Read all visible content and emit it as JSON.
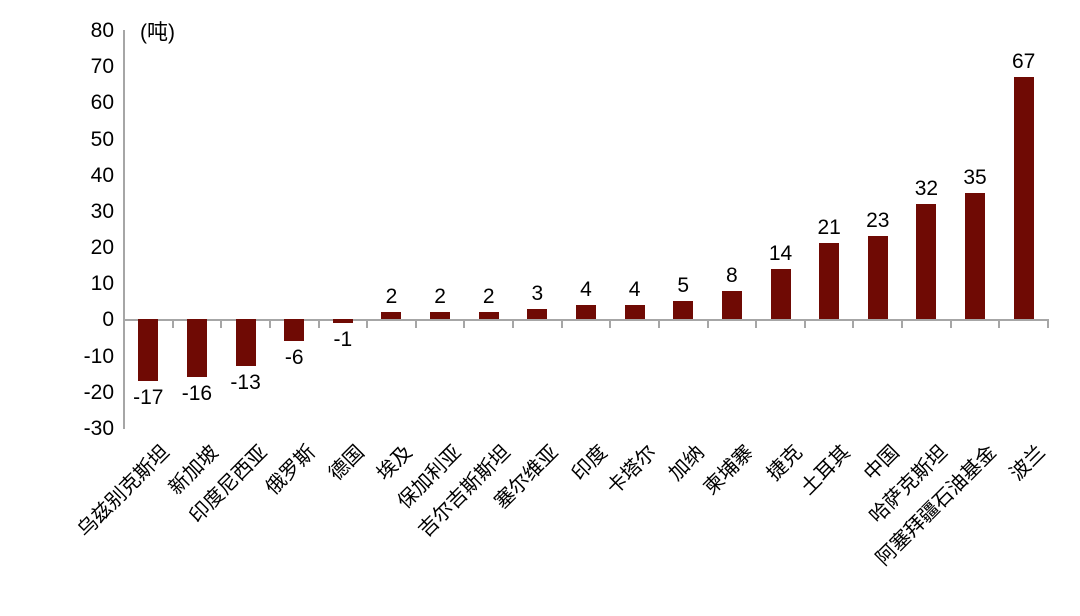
{
  "chart_data": {
    "type": "bar",
    "title": "",
    "unit_label": "(吨)",
    "categories": [
      "乌兹别克斯坦",
      "新加坡",
      "印度尼西亚",
      "俄罗斯",
      "德国",
      "埃及",
      "保加利亚",
      "吉尔吉斯斯坦",
      "塞尔维亚",
      "印度",
      "卡塔尔",
      "加纳",
      "柬埔寨",
      "捷克",
      "土耳其",
      "中国",
      "哈萨克斯坦",
      "阿塞拜疆石油基金",
      "波兰"
    ],
    "values": [
      -17,
      -16,
      -13,
      -6,
      -1,
      2,
      2,
      2,
      3,
      4,
      4,
      5,
      8,
      14,
      21,
      23,
      32,
      35,
      67
    ],
    "xlabel": "",
    "ylabel": "",
    "ylim": [
      -30,
      80
    ],
    "ytick_step": 10,
    "grid": "off",
    "legend": "none",
    "bar_color": "#6F0A04",
    "axis_color": "#A6A6A6",
    "text_color": "#000000"
  }
}
